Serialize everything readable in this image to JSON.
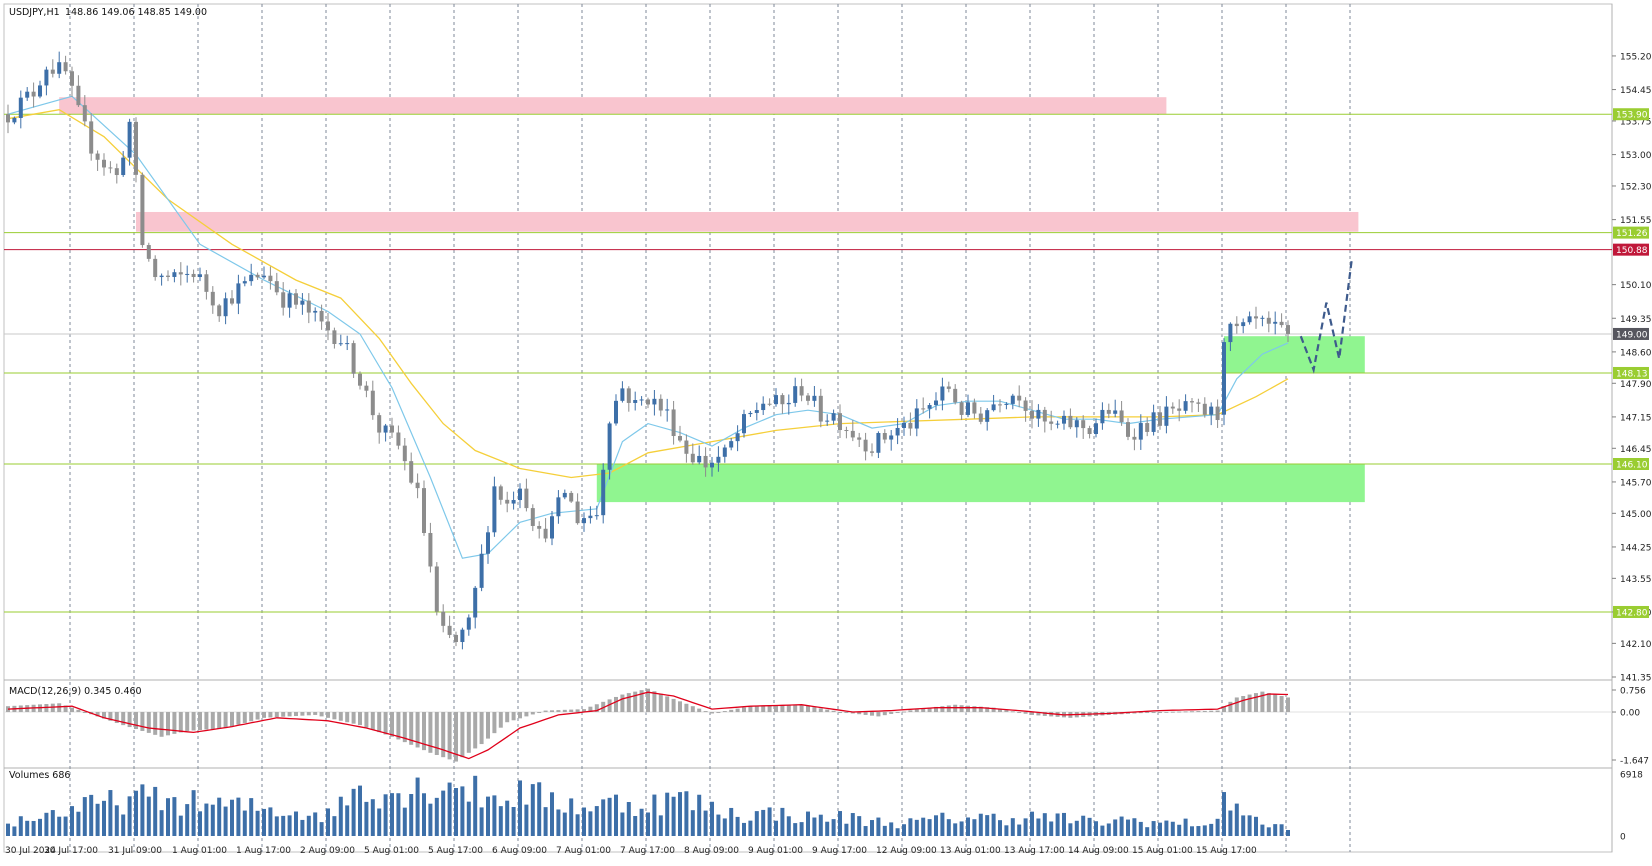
{
  "header": {
    "title": "USDJPY,H1",
    "ohlc": "148.86 149.06 148.85 149.00"
  },
  "colors": {
    "bull": "#3d6fa8",
    "bear": "#8c8c8c",
    "ma_fast": "#7ec8ea",
    "ma_slow": "#f5cf3a",
    "level_line": "#9acd32",
    "resistance_line": "#c0183a",
    "resistance_zone": "#f9c5cf",
    "support_zone": "#90f590",
    "macd_signal": "#e0001a",
    "macd_hist": "#a9a9a9",
    "volume": "#3d6fa8",
    "forecast": "#3d5a8c",
    "grid": "#7f8a99"
  },
  "chart_data": [
    {
      "type": "candlestick",
      "symbol": "USDJPY",
      "timeframe": "H1",
      "ylim": [
        141.35,
        155.6
      ],
      "price_ticks": [
        155.2,
        154.45,
        153.75,
        153.0,
        152.3,
        151.55,
        150.1,
        149.35,
        148.6,
        147.9,
        147.15,
        146.45,
        145.7,
        145.0,
        144.25,
        143.55,
        142.8,
        142.1,
        141.35
      ],
      "price_tick_labels": [
        "155.20",
        "154.45",
        "153.75",
        "153.00",
        "152.30",
        "151.55",
        "150.10",
        "149.35",
        "148.60",
        "147.90",
        "147.15",
        "146.45",
        "145.70",
        "145.00",
        "144.25",
        "143.55",
        "142.80",
        "142.10",
        "141.35"
      ],
      "x_labels": [
        "30 Jul 2024",
        "30 Jul 17:00",
        "31 Jul 09:00",
        "1 Aug 01:00",
        "1 Aug 17:00",
        "2 Aug 09:00",
        "5 Aug 01:00",
        "5 Aug 17:00",
        "6 Aug 09:00",
        "7 Aug 01:00",
        "7 Aug 17:00",
        "8 Aug 09:00",
        "9 Aug 01:00",
        "9 Aug 17:00",
        "12 Aug 09:00",
        "13 Aug 01:00",
        "13 Aug 17:00",
        "14 Aug 09:00",
        "15 Aug 01:00",
        "15 Aug 17:00"
      ],
      "current_price": 149.0,
      "current_price_label": "149.00",
      "levels": [
        {
          "value": 153.9,
          "label": "153.90",
          "kind": "support-resistance"
        },
        {
          "value": 151.26,
          "label": "151.26",
          "kind": "support-resistance"
        },
        {
          "value": 150.88,
          "label": "150.88",
          "kind": "resistance"
        },
        {
          "value": 148.13,
          "label": "148.13",
          "kind": "support-resistance"
        },
        {
          "value": 146.1,
          "label": "146.10",
          "kind": "support-resistance"
        },
        {
          "value": 142.8,
          "label": "142.80",
          "kind": "support-resistance"
        }
      ],
      "zones": [
        {
          "kind": "resistance",
          "from_bar": 8,
          "to_bar": 181,
          "low": 153.9,
          "high": 154.28
        },
        {
          "kind": "resistance",
          "from_bar": 20,
          "to_bar": 211,
          "low": 151.28,
          "high": 151.72
        },
        {
          "kind": "support",
          "from_bar": 92,
          "to_bar": 212,
          "low": 145.25,
          "high": 146.1
        },
        {
          "kind": "support",
          "from_bar": 190,
          "to_bar": 212,
          "low": 148.13,
          "high": 148.95
        }
      ],
      "anchors": [
        [
          0,
          153.9
        ],
        [
          4,
          154.4
        ],
        [
          6,
          155.0
        ],
        [
          9,
          154.8
        ],
        [
          11,
          153.9
        ],
        [
          13,
          153.2
        ],
        [
          15,
          152.8
        ],
        [
          17,
          152.5
        ],
        [
          19,
          153.7
        ],
        [
          21,
          151.0
        ],
        [
          23,
          150.3
        ],
        [
          26,
          150.2
        ],
        [
          29,
          150.4
        ],
        [
          33,
          149.6
        ],
        [
          36,
          150.0
        ],
        [
          40,
          150.4
        ],
        [
          43,
          149.8
        ],
        [
          46,
          149.6
        ],
        [
          49,
          149.2
        ],
        [
          52,
          148.9
        ],
        [
          55,
          148.0
        ],
        [
          58,
          146.9
        ],
        [
          61,
          146.5
        ],
        [
          64,
          145.4
        ],
        [
          66,
          143.8
        ],
        [
          67,
          142.7
        ],
        [
          68,
          142.3
        ],
        [
          70,
          142.1
        ],
        [
          72,
          142.5
        ],
        [
          74,
          144.0
        ],
        [
          76,
          145.6
        ],
        [
          78,
          145.2
        ],
        [
          80,
          145.7
        ],
        [
          83,
          144.5
        ],
        [
          85,
          144.8
        ],
        [
          87,
          145.5
        ],
        [
          89,
          144.9
        ],
        [
          92,
          145.0
        ],
        [
          94,
          147.2
        ],
        [
          96,
          147.8
        ],
        [
          98,
          147.4
        ],
        [
          100,
          147.6
        ],
        [
          103,
          147.2
        ],
        [
          106,
          146.4
        ],
        [
          109,
          146.1
        ],
        [
          112,
          146.3
        ],
        [
          115,
          147.0
        ],
        [
          118,
          147.5
        ],
        [
          121,
          147.4
        ],
        [
          124,
          147.8
        ],
        [
          127,
          147.2
        ],
        [
          129,
          147.2
        ],
        [
          132,
          146.8
        ],
        [
          135,
          146.5
        ],
        [
          138,
          146.8
        ],
        [
          141,
          147.0
        ],
        [
          144,
          147.4
        ],
        [
          147,
          147.8
        ],
        [
          149,
          147.3
        ],
        [
          152,
          147.2
        ],
        [
          155,
          147.6
        ],
        [
          158,
          147.7
        ],
        [
          160,
          147.2
        ],
        [
          163,
          146.9
        ],
        [
          166,
          147.0
        ],
        [
          169,
          146.9
        ],
        [
          172,
          147.3
        ],
        [
          175,
          146.8
        ],
        [
          178,
          147.0
        ],
        [
          181,
          147.2
        ],
        [
          184,
          147.3
        ],
        [
          187,
          147.25
        ],
        [
          189,
          147.2
        ],
        [
          190,
          149.0
        ],
        [
          193,
          149.1
        ],
        [
          195,
          149.25
        ],
        [
          197,
          149.1
        ],
        [
          200,
          149.0
        ]
      ],
      "ma_fast": [
        [
          0,
          153.9
        ],
        [
          10,
          154.3
        ],
        [
          20,
          153.0
        ],
        [
          30,
          151.0
        ],
        [
          40,
          150.2
        ],
        [
          50,
          149.5
        ],
        [
          55,
          149.0
        ],
        [
          60,
          147.8
        ],
        [
          66,
          145.8
        ],
        [
          71,
          144.0
        ],
        [
          75,
          144.1
        ],
        [
          80,
          144.8
        ],
        [
          85,
          145.0
        ],
        [
          92,
          145.1
        ],
        [
          96,
          146.6
        ],
        [
          100,
          147.0
        ],
        [
          105,
          146.8
        ],
        [
          110,
          146.5
        ],
        [
          115,
          146.9
        ],
        [
          120,
          147.2
        ],
        [
          125,
          147.3
        ],
        [
          130,
          147.2
        ],
        [
          135,
          146.9
        ],
        [
          140,
          147.0
        ],
        [
          145,
          147.4
        ],
        [
          150,
          147.5
        ],
        [
          155,
          147.5
        ],
        [
          160,
          147.3
        ],
        [
          165,
          147.1
        ],
        [
          170,
          147.1
        ],
        [
          175,
          147.0
        ],
        [
          180,
          147.1
        ],
        [
          189,
          147.2
        ],
        [
          192,
          148.0
        ],
        [
          196,
          148.55
        ],
        [
          200,
          148.8
        ]
      ],
      "ma_slow": [
        [
          0,
          153.8
        ],
        [
          8,
          154.0
        ],
        [
          15,
          153.4
        ],
        [
          25,
          152.0
        ],
        [
          35,
          151.0
        ],
        [
          45,
          150.2
        ],
        [
          52,
          149.8
        ],
        [
          58,
          148.9
        ],
        [
          63,
          147.9
        ],
        [
          68,
          147.0
        ],
        [
          73,
          146.4
        ],
        [
          80,
          146.0
        ],
        [
          88,
          145.8
        ],
        [
          94,
          145.9
        ],
        [
          100,
          146.35
        ],
        [
          110,
          146.6
        ],
        [
          120,
          146.85
        ],
        [
          130,
          147.0
        ],
        [
          140,
          147.05
        ],
        [
          150,
          147.1
        ],
        [
          160,
          147.15
        ],
        [
          170,
          147.15
        ],
        [
          180,
          147.15
        ],
        [
          189,
          147.2
        ],
        [
          195,
          147.6
        ],
        [
          200,
          148.0
        ]
      ],
      "forecast": [
        [
          202,
          148.95
        ],
        [
          204,
          148.2
        ],
        [
          206,
          149.7
        ],
        [
          208,
          148.45
        ],
        [
          210,
          150.7
        ]
      ],
      "volume_anchors": [
        [
          0,
          1600
        ],
        [
          10,
          3200
        ],
        [
          20,
          4600
        ],
        [
          30,
          3900
        ],
        [
          40,
          3300
        ],
        [
          50,
          2500
        ],
        [
          55,
          6000
        ],
        [
          60,
          5200
        ],
        [
          70,
          6500
        ],
        [
          75,
          4500
        ],
        [
          80,
          5200
        ],
        [
          90,
          3500
        ],
        [
          95,
          4000
        ],
        [
          100,
          3800
        ],
        [
          105,
          4600
        ],
        [
          110,
          3300
        ],
        [
          115,
          2500
        ],
        [
          120,
          2800
        ],
        [
          125,
          2200
        ],
        [
          130,
          2300
        ],
        [
          135,
          1800
        ],
        [
          140,
          1500
        ],
        [
          145,
          2000
        ],
        [
          150,
          2300
        ],
        [
          155,
          2100
        ],
        [
          160,
          2300
        ],
        [
          165,
          2100
        ],
        [
          170,
          1600
        ],
        [
          175,
          2000
        ],
        [
          180,
          1600
        ],
        [
          189,
          1500
        ],
        [
          190,
          5000
        ],
        [
          193,
          3200
        ],
        [
          196,
          1200
        ],
        [
          200,
          1200
        ]
      ]
    },
    {
      "type": "macd",
      "title": "MACD(12,26,9) 0.345 0.460",
      "params": [
        12,
        26,
        9
      ],
      "main": 0.345,
      "signal": 0.46,
      "ylim": [
        -1.647,
        0.756
      ],
      "tick_labels": [
        "0.756",
        "0.00",
        "-1.647"
      ],
      "hist_anchors": [
        [
          0,
          0.2
        ],
        [
          8,
          0.3
        ],
        [
          12,
          0.0
        ],
        [
          18,
          -0.45
        ],
        [
          24,
          -0.85
        ],
        [
          28,
          -0.65
        ],
        [
          34,
          -0.55
        ],
        [
          40,
          -0.2
        ],
        [
          48,
          -0.1
        ],
        [
          55,
          -0.45
        ],
        [
          60,
          -0.85
        ],
        [
          66,
          -1.4
        ],
        [
          70,
          -1.7
        ],
        [
          74,
          -1.1
        ],
        [
          78,
          -0.35
        ],
        [
          84,
          0.05
        ],
        [
          90,
          0.1
        ],
        [
          96,
          0.6
        ],
        [
          100,
          0.8
        ],
        [
          104,
          0.45
        ],
        [
          110,
          -0.05
        ],
        [
          116,
          0.2
        ],
        [
          124,
          0.25
        ],
        [
          130,
          0.0
        ],
        [
          136,
          -0.15
        ],
        [
          142,
          0.1
        ],
        [
          148,
          0.25
        ],
        [
          154,
          0.15
        ],
        [
          160,
          -0.1
        ],
        [
          166,
          -0.2
        ],
        [
          172,
          -0.1
        ],
        [
          180,
          0.0
        ],
        [
          189,
          0.05
        ],
        [
          192,
          0.5
        ],
        [
          196,
          0.7
        ],
        [
          200,
          0.5
        ]
      ],
      "signal_anchors": [
        [
          0,
          0.1
        ],
        [
          10,
          0.2
        ],
        [
          15,
          -0.2
        ],
        [
          22,
          -0.55
        ],
        [
          29,
          -0.7
        ],
        [
          35,
          -0.5
        ],
        [
          42,
          -0.2
        ],
        [
          50,
          -0.3
        ],
        [
          56,
          -0.55
        ],
        [
          62,
          -0.9
        ],
        [
          68,
          -1.3
        ],
        [
          72,
          -1.6
        ],
        [
          75,
          -1.3
        ],
        [
          80,
          -0.55
        ],
        [
          86,
          -0.1
        ],
        [
          92,
          0.05
        ],
        [
          96,
          0.45
        ],
        [
          100,
          0.68
        ],
        [
          104,
          0.55
        ],
        [
          110,
          0.1
        ],
        [
          116,
          0.2
        ],
        [
          124,
          0.25
        ],
        [
          132,
          0.0
        ],
        [
          138,
          0.05
        ],
        [
          145,
          0.15
        ],
        [
          152,
          0.15
        ],
        [
          158,
          0.05
        ],
        [
          165,
          -0.1
        ],
        [
          172,
          -0.05
        ],
        [
          180,
          0.05
        ],
        [
          189,
          0.1
        ],
        [
          193,
          0.4
        ],
        [
          197,
          0.62
        ],
        [
          200,
          0.6
        ]
      ]
    },
    {
      "type": "bar",
      "title": "Volumes 686",
      "ylim": [
        0,
        6918
      ],
      "tick_labels": [
        "6918",
        "0"
      ]
    }
  ]
}
